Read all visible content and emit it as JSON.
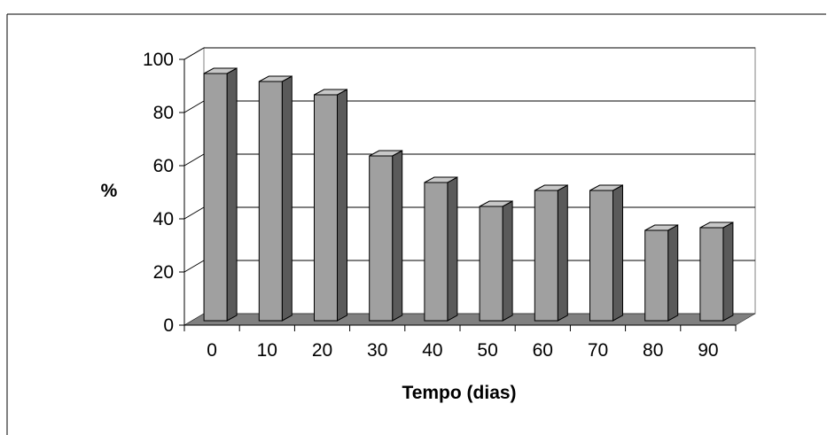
{
  "chart_data": {
    "type": "bar",
    "categories": [
      "0",
      "10",
      "20",
      "30",
      "40",
      "50",
      "60",
      "70",
      "80",
      "90"
    ],
    "values": [
      93,
      90,
      85,
      62,
      52,
      43,
      49,
      49,
      34,
      35
    ],
    "xlabel": "Tempo (dias)",
    "ylabel": "%",
    "ylim": [
      0,
      100
    ],
    "yticks": [
      "0",
      "20",
      "40",
      "60",
      "80",
      "100"
    ],
    "grid": true,
    "colors": {
      "bar_front": "#a0a0a0",
      "bar_side": "#5a5a5a",
      "bar_top": "#c8c8c8",
      "floor": "#808080",
      "gridline": "#000000",
      "wall": "#ffffff"
    }
  }
}
